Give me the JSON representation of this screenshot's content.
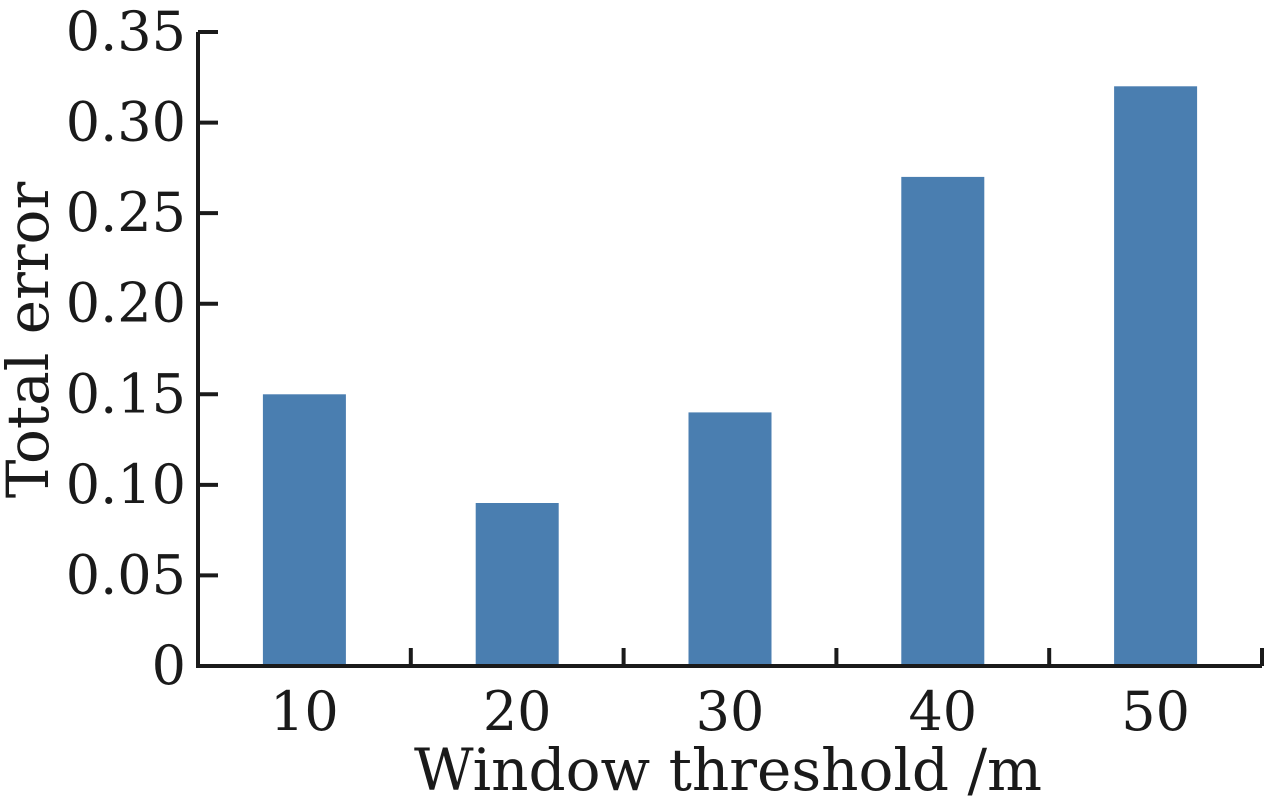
{
  "chart_data": {
    "type": "bar",
    "title": "",
    "xlabel": "Window threshold /m",
    "ylabel": "Total error",
    "categories": [
      "10",
      "20",
      "30",
      "40",
      "50"
    ],
    "values": [
      0.15,
      0.09,
      0.14,
      0.27,
      0.32
    ],
    "ylim": [
      0,
      0.35
    ],
    "yticks": [
      "0",
      "0.05",
      "0.10",
      "0.15",
      "0.20",
      "0.25",
      "0.30",
      "0.35"
    ],
    "grid": false,
    "legend": "none",
    "bar_color": "#4a7eb0",
    "axis_color": "#1a1a1a"
  }
}
